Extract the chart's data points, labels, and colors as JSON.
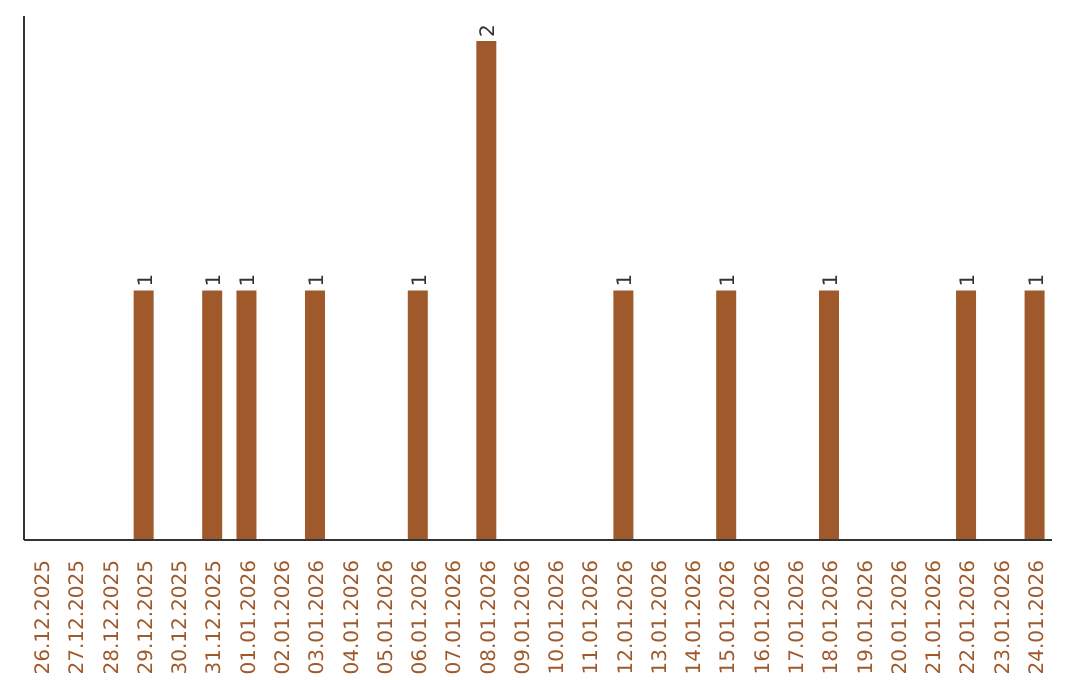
{
  "chart_data": {
    "type": "bar",
    "categories": [
      "26.12.2025",
      "27.12.2025",
      "28.12.2025",
      "29.12.2025",
      "30.12.2025",
      "31.12.2025",
      "01.01.2026",
      "02.01.2026",
      "03.01.2026",
      "04.01.2026",
      "05.01.2026",
      "06.01.2026",
      "07.01.2026",
      "08.01.2026",
      "09.01.2026",
      "10.01.2026",
      "11.01.2026",
      "12.01.2026",
      "13.01.2026",
      "14.01.2026",
      "15.01.2026",
      "16.01.2026",
      "17.01.2026",
      "18.01.2026",
      "19.01.2026",
      "20.01.2026",
      "21.01.2026",
      "22.01.2026",
      "23.01.2026",
      "24.01.2026"
    ],
    "values": [
      0,
      0,
      0,
      1,
      0,
      1,
      1,
      0,
      1,
      0,
      0,
      1,
      0,
      2,
      0,
      0,
      0,
      1,
      0,
      0,
      1,
      0,
      0,
      1,
      0,
      0,
      0,
      1,
      0,
      1
    ],
    "value_labels": [
      null,
      null,
      null,
      "1",
      null,
      "1",
      "1",
      null,
      "1",
      null,
      null,
      "1",
      null,
      "2",
      null,
      null,
      null,
      "1",
      null,
      null,
      "1",
      null,
      null,
      "1",
      null,
      null,
      null,
      "1",
      null,
      "1"
    ],
    "color": "#a0592a",
    "grid": false,
    "legend": false
  }
}
